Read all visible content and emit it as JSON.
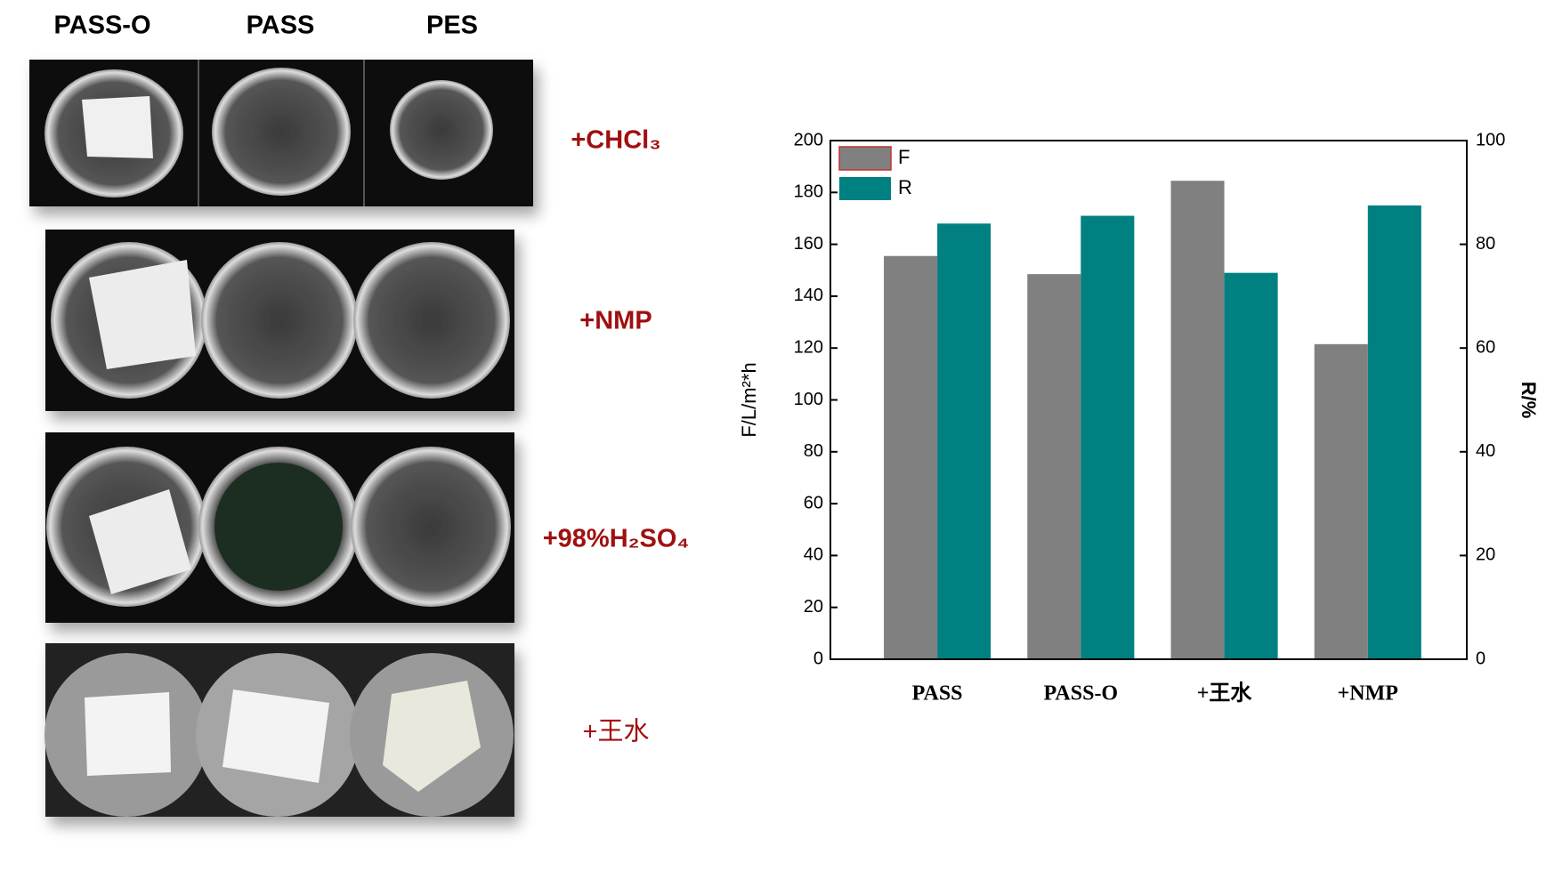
{
  "photos": {
    "columns": [
      "PASS-O",
      "PASS",
      "PES"
    ],
    "rows": [
      "+CHCl₃",
      "+NMP",
      "+98%H₂SO₄",
      "+王水"
    ]
  },
  "chart_data": {
    "type": "bar",
    "categories": [
      "PASS",
      "PASS-O",
      "+王水",
      "+NMP"
    ],
    "series": [
      {
        "name": "F",
        "color": "#808080",
        "values": [
          155.5,
          148.5,
          184.5,
          121.5
        ]
      },
      {
        "name": "R",
        "color": "#008080",
        "axis": "y2",
        "values": [
          84,
          85.5,
          74.5,
          87.5
        ]
      }
    ],
    "ylabel": "F/L/m²*h",
    "y2label": "R/%",
    "ylim": [
      0,
      200
    ],
    "yticks": [
      0,
      20,
      40,
      60,
      80,
      100,
      120,
      140,
      160,
      180,
      200
    ],
    "y2lim": [
      0,
      100
    ],
    "y2ticks": [
      0,
      20,
      40,
      60,
      80,
      100
    ],
    "legend": "upper left"
  }
}
